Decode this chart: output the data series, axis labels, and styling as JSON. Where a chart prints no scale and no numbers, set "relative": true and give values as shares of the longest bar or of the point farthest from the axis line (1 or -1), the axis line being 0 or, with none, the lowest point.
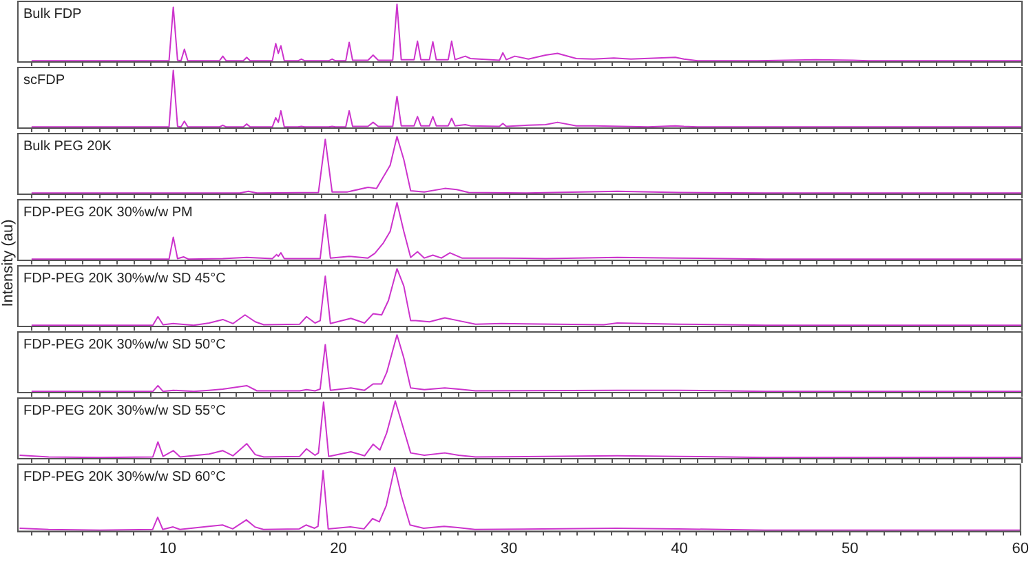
{
  "chart_data": [
    {
      "type": "line",
      "title": "Bulk FDP",
      "relative": true,
      "xlim": [
        1.2,
        60
      ],
      "tick_labels": false,
      "series": [
        {
          "color": "#cc33cc",
          "x": [
            2,
            10.05,
            10.3,
            10.55,
            10.75,
            10.95,
            11.15,
            13.0,
            13.2,
            13.4,
            14.4,
            14.6,
            14.8,
            16.1,
            16.3,
            16.45,
            16.6,
            16.8,
            17.6,
            17.8,
            18.0,
            19.4,
            19.6,
            19.8,
            20.4,
            20.6,
            20.8,
            21.7,
            22.0,
            22.3,
            23.15,
            23.4,
            23.65,
            24.4,
            24.6,
            24.8,
            25.3,
            25.5,
            25.7,
            26.4,
            26.6,
            26.8,
            27.4,
            27.7,
            29.4,
            29.6,
            29.8,
            30.3,
            31.1,
            32.1,
            32.8,
            33.9,
            34.9,
            36.1,
            37.1,
            39.7,
            40.2,
            41,
            44.5,
            47.9,
            50.1,
            51,
            60
          ],
          "values": [
            0.02,
            0.02,
            0.95,
            0.03,
            0.02,
            0.22,
            0.02,
            0.02,
            0.1,
            0.02,
            0.02,
            0.08,
            0.02,
            0.02,
            0.32,
            0.15,
            0.28,
            0.02,
            0.02,
            0.05,
            0.02,
            0.02,
            0.05,
            0.02,
            0.02,
            0.34,
            0.03,
            0.03,
            0.12,
            0.03,
            0.03,
            1.0,
            0.04,
            0.04,
            0.36,
            0.04,
            0.04,
            0.35,
            0.04,
            0.04,
            0.36,
            0.04,
            0.1,
            0.06,
            0.03,
            0.16,
            0.04,
            0.1,
            0.05,
            0.12,
            0.15,
            0.06,
            0.05,
            0.07,
            0.05,
            0.08,
            0.05,
            0.02,
            0.02,
            0.04,
            0.03,
            0.02,
            0.02
          ]
        }
      ],
      "xticks": [
        2,
        3,
        4,
        5,
        6,
        7,
        8,
        9,
        10,
        11,
        12,
        13,
        14,
        15,
        16,
        17,
        18,
        19,
        20,
        21,
        22,
        23,
        24,
        25,
        26,
        27,
        28,
        29,
        30,
        31,
        32,
        33,
        34,
        35,
        36,
        37,
        38,
        39,
        40,
        41,
        42,
        43,
        44,
        45,
        46,
        47,
        48,
        49,
        50,
        51,
        52,
        53,
        54,
        55,
        56,
        57,
        58,
        59,
        60
      ]
    },
    {
      "type": "line",
      "title": "scFDP",
      "relative": true,
      "xlim": [
        1.2,
        60
      ],
      "tick_labels": false,
      "series": [
        {
          "color": "#cc33cc",
          "x": [
            2,
            10.05,
            10.3,
            10.55,
            10.75,
            10.95,
            11.15,
            13.0,
            13.2,
            13.4,
            14.4,
            14.6,
            14.8,
            16.1,
            16.3,
            16.45,
            16.6,
            16.8,
            17.6,
            17.8,
            18.0,
            19.4,
            19.6,
            19.8,
            20.4,
            20.6,
            20.8,
            21.7,
            22.0,
            22.3,
            23.15,
            23.4,
            23.65,
            24.4,
            24.6,
            24.8,
            25.3,
            25.5,
            25.7,
            26.4,
            26.6,
            26.8,
            27.4,
            27.7,
            29.4,
            29.6,
            29.8,
            31.1,
            32.1,
            32.8,
            33.9,
            35.0,
            38.1,
            39.7,
            40.2,
            41,
            44.8,
            50.1,
            51,
            60
          ],
          "values": [
            0.02,
            0.02,
            1.0,
            0.03,
            0.02,
            0.12,
            0.02,
            0.02,
            0.05,
            0.02,
            0.02,
            0.07,
            0.02,
            0.02,
            0.18,
            0.1,
            0.3,
            0.02,
            0.02,
            0.03,
            0.02,
            0.02,
            0.03,
            0.02,
            0.02,
            0.3,
            0.03,
            0.03,
            0.1,
            0.03,
            0.03,
            0.55,
            0.04,
            0.04,
            0.2,
            0.04,
            0.04,
            0.2,
            0.04,
            0.04,
            0.17,
            0.04,
            0.06,
            0.04,
            0.03,
            0.08,
            0.03,
            0.05,
            0.06,
            0.1,
            0.04,
            0.04,
            0.02,
            0.04,
            0.03,
            0.02,
            0.02,
            0.02,
            0.02,
            0.02
          ]
        }
      ],
      "xticks": [
        2,
        3,
        4,
        5,
        6,
        7,
        8,
        9,
        10,
        11,
        12,
        13,
        14,
        15,
        16,
        17,
        18,
        19,
        20,
        21,
        22,
        23,
        24,
        25,
        26,
        27,
        28,
        29,
        30,
        31,
        32,
        33,
        34,
        35,
        36,
        37,
        38,
        39,
        40,
        41,
        42,
        43,
        44,
        45,
        46,
        47,
        48,
        49,
        50,
        51,
        52,
        53,
        54,
        55,
        56,
        57,
        58,
        59,
        60
      ]
    },
    {
      "type": "line",
      "title": "Bulk PEG 20K",
      "relative": true,
      "xlim": [
        1.2,
        60
      ],
      "tick_labels": false,
      "series": [
        {
          "color": "#cc33cc",
          "x": [
            2,
            14.2,
            14.7,
            15.2,
            18.8,
            19.2,
            19.6,
            20.5,
            21.7,
            22.2,
            22.6,
            23.0,
            23.4,
            23.8,
            24.2,
            25.0,
            26.2,
            26.9,
            27.6,
            31,
            36.3,
            39.9,
            45,
            60
          ],
          "values": [
            0.02,
            0.02,
            0.05,
            0.02,
            0.03,
            0.95,
            0.04,
            0.04,
            0.12,
            0.1,
            0.3,
            0.5,
            1.0,
            0.6,
            0.06,
            0.04,
            0.1,
            0.08,
            0.03,
            0.02,
            0.05,
            0.03,
            0.02,
            0.02
          ]
        }
      ],
      "xticks": [
        2,
        3,
        4,
        5,
        6,
        7,
        8,
        9,
        10,
        11,
        12,
        13,
        14,
        15,
        16,
        17,
        18,
        19,
        20,
        21,
        22,
        23,
        24,
        25,
        26,
        27,
        28,
        29,
        30,
        31,
        32,
        33,
        34,
        35,
        36,
        37,
        38,
        39,
        40,
        41,
        42,
        43,
        44,
        45,
        46,
        47,
        48,
        49,
        50,
        51,
        52,
        53,
        54,
        55,
        56,
        57,
        58,
        59,
        60
      ]
    },
    {
      "type": "line",
      "title": "FDP-PEG 20K 30%w/w PM",
      "relative": true,
      "xlim": [
        1.2,
        60
      ],
      "tick_labels": false,
      "series": [
        {
          "color": "#cc33cc",
          "x": [
            2,
            10.05,
            10.3,
            10.55,
            10.9,
            11.2,
            13.2,
            14.6,
            16.1,
            16.35,
            16.45,
            16.6,
            16.8,
            18.9,
            19.2,
            19.5,
            20.6,
            21.7,
            22.1,
            22.6,
            23.0,
            23.4,
            23.8,
            24.2,
            24.6,
            25.0,
            25.5,
            26.0,
            26.5,
            27.2,
            29.6,
            32.1,
            36.3,
            39.9,
            45,
            60
          ],
          "values": [
            0.02,
            0.02,
            0.4,
            0.03,
            0.06,
            0.02,
            0.03,
            0.05,
            0.03,
            0.1,
            0.07,
            0.13,
            0.03,
            0.03,
            0.79,
            0.04,
            0.07,
            0.04,
            0.12,
            0.3,
            0.5,
            1.0,
            0.5,
            0.05,
            0.15,
            0.04,
            0.09,
            0.04,
            0.13,
            0.04,
            0.04,
            0.03,
            0.05,
            0.04,
            0.02,
            0.02
          ]
        }
      ],
      "xticks": [
        2,
        3,
        4,
        5,
        6,
        7,
        8,
        9,
        10,
        11,
        12,
        13,
        14,
        15,
        16,
        17,
        18,
        19,
        20,
        21,
        22,
        23,
        24,
        25,
        26,
        27,
        28,
        29,
        30,
        31,
        32,
        33,
        34,
        35,
        36,
        37,
        38,
        39,
        40,
        41,
        42,
        43,
        44,
        45,
        46,
        47,
        48,
        49,
        50,
        51,
        52,
        53,
        54,
        55,
        56,
        57,
        58,
        59,
        60
      ]
    },
    {
      "type": "line",
      "title": "FDP-PEG 20K 30%w/w SD 45°C",
      "ylabel": "Intensity (au)",
      "relative": true,
      "xlim": [
        1.2,
        60
      ],
      "tick_labels": false,
      "series": [
        {
          "color": "#cc33cc",
          "x": [
            2,
            9.1,
            9.4,
            9.7,
            10.3,
            11.5,
            12.4,
            13.2,
            13.8,
            14.5,
            15.1,
            15.6,
            17.7,
            18.1,
            18.6,
            18.9,
            19.2,
            19.5,
            20.7,
            21.5,
            22.0,
            22.5,
            22.9,
            23.4,
            23.8,
            24.2,
            24.5,
            25.3,
            26.2,
            27.0,
            28,
            29.5,
            35.5,
            36.3,
            39.9,
            45,
            60
          ],
          "values": [
            0.02,
            0.02,
            0.17,
            0.03,
            0.05,
            0.02,
            0.06,
            0.12,
            0.05,
            0.2,
            0.08,
            0.03,
            0.04,
            0.17,
            0.06,
            0.1,
            0.87,
            0.05,
            0.14,
            0.06,
            0.22,
            0.2,
            0.45,
            1.0,
            0.7,
            0.1,
            0.1,
            0.08,
            0.15,
            0.1,
            0.04,
            0.05,
            0.03,
            0.06,
            0.04,
            0.02,
            0.02
          ]
        }
      ],
      "xticks": [
        2,
        3,
        4,
        5,
        6,
        7,
        8,
        9,
        10,
        11,
        12,
        13,
        14,
        15,
        16,
        17,
        18,
        19,
        20,
        21,
        22,
        23,
        24,
        25,
        26,
        27,
        28,
        29,
        30,
        31,
        32,
        33,
        34,
        35,
        36,
        37,
        38,
        39,
        40,
        41,
        42,
        43,
        44,
        45,
        46,
        47,
        48,
        49,
        50,
        51,
        52,
        53,
        54,
        55,
        56,
        57,
        58,
        59,
        60
      ]
    },
    {
      "type": "line",
      "title": "FDP-PEG 20K 30%w/w SD 50°C",
      "relative": true,
      "xlim": [
        1.2,
        60
      ],
      "tick_labels": false,
      "series": [
        {
          "color": "#cc33cc",
          "x": [
            2,
            9.1,
            9.4,
            9.7,
            10.3,
            11.5,
            12.4,
            13.2,
            14.6,
            15.2,
            17.7,
            18.1,
            18.6,
            18.9,
            19.2,
            19.5,
            20.7,
            21.5,
            22.0,
            22.5,
            22.8,
            23.4,
            23.8,
            24.2,
            25.0,
            26.2,
            27.0,
            28,
            36.3,
            39.9,
            45,
            60
          ],
          "values": [
            0.02,
            0.02,
            0.12,
            0.02,
            0.04,
            0.02,
            0.04,
            0.06,
            0.12,
            0.03,
            0.03,
            0.05,
            0.03,
            0.06,
            0.83,
            0.04,
            0.08,
            0.04,
            0.15,
            0.15,
            0.35,
            1.0,
            0.6,
            0.08,
            0.05,
            0.08,
            0.06,
            0.03,
            0.04,
            0.04,
            0.02,
            0.02
          ]
        }
      ],
      "xticks": [
        2,
        3,
        4,
        5,
        6,
        7,
        8,
        9,
        10,
        11,
        12,
        13,
        14,
        15,
        16,
        17,
        18,
        19,
        20,
        21,
        22,
        23,
        24,
        25,
        26,
        27,
        28,
        29,
        30,
        31,
        32,
        33,
        34,
        35,
        36,
        37,
        38,
        39,
        40,
        41,
        42,
        43,
        44,
        45,
        46,
        47,
        48,
        49,
        50,
        51,
        52,
        53,
        54,
        55,
        56,
        57,
        58,
        59,
        60
      ]
    },
    {
      "type": "line",
      "title": "FDP-PEG 20K 30%w/w SD 55°C",
      "relative": true,
      "xlim": [
        1.2,
        60
      ],
      "tick_labels": false,
      "series": [
        {
          "color": "#cc33cc",
          "x": [
            1.3,
            3,
            6,
            9.1,
            9.4,
            9.7,
            10.3,
            10.7,
            12.4,
            13.2,
            13.8,
            14.6,
            15.1,
            15.6,
            17.7,
            18.1,
            18.6,
            18.8,
            19.1,
            19.4,
            20.7,
            21.5,
            22.0,
            22.4,
            22.8,
            23.3,
            23.7,
            24.2,
            25.0,
            26.2,
            27.0,
            28,
            36.3,
            39.9,
            45,
            60
          ],
          "values": [
            0.06,
            0.03,
            0.02,
            0.03,
            0.29,
            0.04,
            0.14,
            0.03,
            0.08,
            0.14,
            0.05,
            0.26,
            0.07,
            0.03,
            0.04,
            0.17,
            0.06,
            0.1,
            0.98,
            0.04,
            0.12,
            0.05,
            0.25,
            0.15,
            0.45,
            1.0,
            0.6,
            0.1,
            0.06,
            0.1,
            0.06,
            0.03,
            0.05,
            0.04,
            0.02,
            0.02
          ]
        }
      ],
      "xticks": [
        2,
        3,
        4,
        5,
        6,
        7,
        8,
        9,
        10,
        11,
        12,
        13,
        14,
        15,
        16,
        17,
        18,
        19,
        20,
        21,
        22,
        23,
        24,
        25,
        26,
        27,
        28,
        29,
        30,
        31,
        32,
        33,
        34,
        35,
        36,
        37,
        38,
        39,
        40,
        41,
        42,
        43,
        44,
        45,
        46,
        47,
        48,
        49,
        50,
        51,
        52,
        53,
        54,
        55,
        56,
        57,
        58,
        59,
        60
      ]
    },
    {
      "type": "line",
      "title": "FDP-PEG 20K 30%w/w SD 60°C",
      "relative": true,
      "xlim": [
        1.2,
        60
      ],
      "tick_labels": "x",
      "series": [
        {
          "color": "#cc33cc",
          "x": [
            1.3,
            3,
            6,
            9.1,
            9.4,
            9.7,
            10.3,
            10.7,
            12.4,
            13.2,
            13.8,
            14.6,
            15.1,
            15.6,
            17.7,
            18.1,
            18.6,
            18.8,
            19.1,
            19.4,
            20.7,
            21.5,
            22.0,
            22.4,
            22.8,
            23.3,
            23.7,
            24.2,
            25.0,
            26.2,
            27.0,
            28,
            36.3,
            39.9,
            45,
            60
          ],
          "values": [
            0.05,
            0.03,
            0.02,
            0.03,
            0.22,
            0.03,
            0.07,
            0.03,
            0.08,
            0.1,
            0.04,
            0.18,
            0.07,
            0.03,
            0.04,
            0.1,
            0.05,
            0.08,
            0.95,
            0.04,
            0.07,
            0.04,
            0.2,
            0.15,
            0.4,
            1.0,
            0.55,
            0.1,
            0.05,
            0.08,
            0.06,
            0.03,
            0.05,
            0.04,
            0.02,
            0.02
          ]
        }
      ],
      "xticks": [
        {
          "value": 2,
          "label": null
        },
        {
          "value": 3,
          "label": null
        },
        {
          "value": 4,
          "label": null
        },
        {
          "value": 5,
          "label": null
        },
        {
          "value": 6,
          "label": null
        },
        {
          "value": 7,
          "label": null
        },
        {
          "value": 8,
          "label": null
        },
        {
          "value": 9,
          "label": null
        },
        10,
        {
          "value": 11,
          "label": null
        },
        {
          "value": 12,
          "label": null
        },
        {
          "value": 13,
          "label": null
        },
        {
          "value": 14,
          "label": null
        },
        {
          "value": 15,
          "label": null
        },
        {
          "value": 16,
          "label": null
        },
        {
          "value": 17,
          "label": null
        },
        {
          "value": 18,
          "label": null
        },
        {
          "value": 19,
          "label": null
        },
        20,
        {
          "value": 21,
          "label": null
        },
        {
          "value": 22,
          "label": null
        },
        {
          "value": 23,
          "label": null
        },
        {
          "value": 24,
          "label": null
        },
        {
          "value": 25,
          "label": null
        },
        {
          "value": 26,
          "label": null
        },
        {
          "value": 27,
          "label": null
        },
        {
          "value": 28,
          "label": null
        },
        {
          "value": 29,
          "label": null
        },
        30,
        {
          "value": 31,
          "label": null
        },
        {
          "value": 32,
          "label": null
        },
        {
          "value": 33,
          "label": null
        },
        {
          "value": 34,
          "label": null
        },
        {
          "value": 35,
          "label": null
        },
        {
          "value": 36,
          "label": null
        },
        {
          "value": 37,
          "label": null
        },
        {
          "value": 38,
          "label": null
        },
        {
          "value": 39,
          "label": null
        },
        40,
        {
          "value": 41,
          "label": null
        },
        {
          "value": 42,
          "label": null
        },
        {
          "value": 43,
          "label": null
        },
        {
          "value": 44,
          "label": null
        },
        {
          "value": 45,
          "label": null
        },
        {
          "value": 46,
          "label": null
        },
        {
          "value": 47,
          "label": null
        },
        {
          "value": 48,
          "label": null
        },
        {
          "value": 49,
          "label": null
        },
        50,
        {
          "value": 51,
          "label": null
        },
        {
          "value": 52,
          "label": null
        },
        {
          "value": 53,
          "label": null
        },
        {
          "value": 54,
          "label": null
        },
        {
          "value": 55,
          "label": null
        },
        {
          "value": 56,
          "label": null
        },
        {
          "value": 57,
          "label": null
        },
        {
          "value": 58,
          "label": null
        },
        {
          "value": 59,
          "label": null
        },
        60
      ]
    }
  ]
}
